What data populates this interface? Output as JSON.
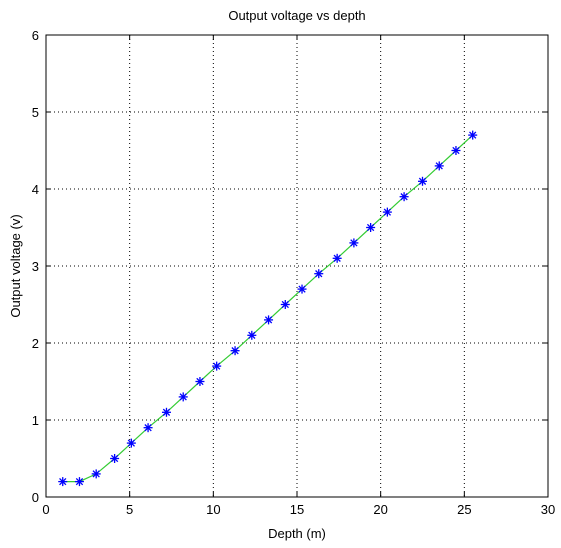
{
  "chart_data": {
    "type": "line",
    "title": "Output voltage vs depth",
    "xlabel": "Depth (m)",
    "ylabel": "Output voltage (v)",
    "xlim": [
      0,
      30
    ],
    "ylim": [
      0,
      6
    ],
    "xticks": [
      "0",
      "5",
      "10",
      "15",
      "20",
      "25",
      "30"
    ],
    "yticks": [
      "0",
      "1",
      "2",
      "3",
      "4",
      "5",
      "6"
    ],
    "grid": true,
    "series": [
      {
        "line_color": "#33cc33",
        "marker": "asterisk",
        "marker_color": "#0000ff",
        "x": [
          1,
          2,
          3,
          4.1,
          5.1,
          6.1,
          7.2,
          8.2,
          9.2,
          10.2,
          11.3,
          12.3,
          13.3,
          14.3,
          15.3,
          16.3,
          17.4,
          18.4,
          19.4,
          20.4,
          21.4,
          22.5,
          23.5,
          24.5,
          25.5
        ],
        "y": [
          0.2,
          0.2,
          0.3,
          0.5,
          0.7,
          0.9,
          1.1,
          1.3,
          1.5,
          1.7,
          1.9,
          2.1,
          2.3,
          2.5,
          2.7,
          2.9,
          3.1,
          3.3,
          3.5,
          3.7,
          3.9,
          4.1,
          4.3,
          4.5,
          4.7
        ]
      }
    ]
  }
}
